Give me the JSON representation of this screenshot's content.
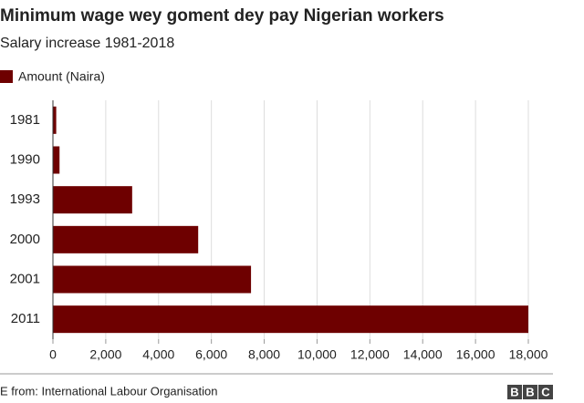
{
  "chart_data": {
    "type": "barh",
    "title": "Minimum wage wey goment dey pay Nigerian workers",
    "subtitle": "Salary increase 1981-2018",
    "categories": [
      "1981",
      "1990",
      "1993",
      "2000",
      "2001",
      "2011"
    ],
    "series": [
      {
        "name": "Amount (Naira)",
        "color": "#6e0000",
        "values": [
          125,
          250,
          3000,
          5500,
          7500,
          18000
        ]
      }
    ],
    "xlim": [
      0,
      18000
    ],
    "xticks": [
      0,
      {
        "value": 2000,
        "label": "2,000"
      },
      {
        "value": 4000,
        "label": "4,000"
      },
      {
        "value": 6000,
        "label": "6,000"
      },
      {
        "value": 8000,
        "label": "8,000"
      },
      {
        "value": 10000,
        "label": "10,000"
      },
      {
        "value": 12000,
        "label": "12,000"
      },
      {
        "value": 14000,
        "label": "14,000"
      },
      {
        "value": 16000,
        "label": "16,000"
      },
      {
        "value": 18000,
        "label": "18,000"
      }
    ],
    "grid": true,
    "legend": "top-left"
  },
  "footer": {
    "source": "E from: International Labour Organisation",
    "logo": [
      "B",
      "B",
      "C"
    ]
  }
}
